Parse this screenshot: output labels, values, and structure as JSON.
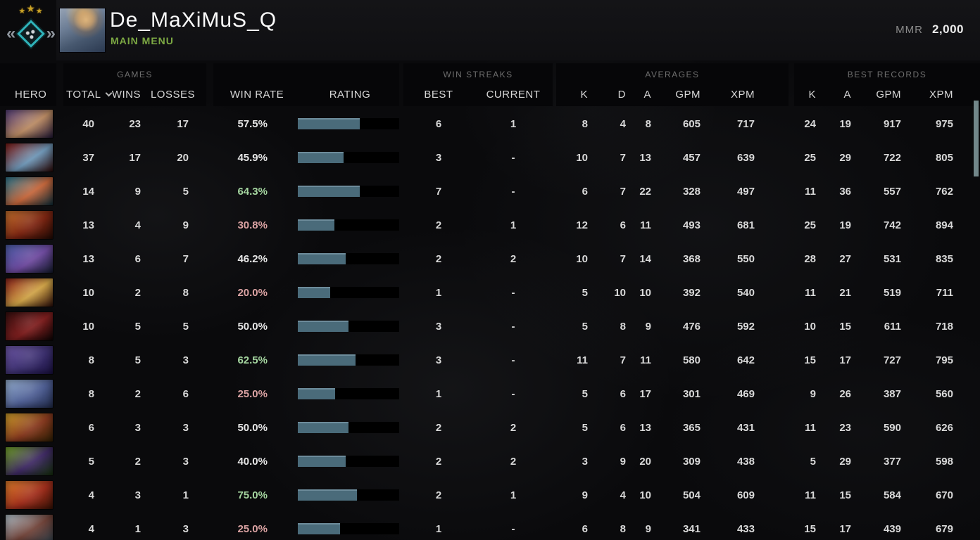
{
  "colors": {
    "accent_green": "#7ca843",
    "win_rate_high": "#a5d6a0",
    "win_rate_low": "#dba3a3",
    "win_rate_mid": "#e6e6e6",
    "bar_fill": "#4a6b7a",
    "bar_track": "#000000",
    "medal_teal": "#2fb3ba",
    "star_gold": "#c9a227",
    "scrollbar_thumb": "#72878a"
  },
  "icons": {
    "rank_star": "★",
    "medal_wing_left": "«",
    "medal_wing_right": "»",
    "sort_chevron": "chevron-down"
  },
  "top_bar": {
    "player_name": "De_MaXiMuS_Q",
    "nav_label": "MAIN MENU",
    "mmr_label": "MMR",
    "mmr_value": "2,000"
  },
  "table": {
    "header": {
      "hero": "HERO",
      "games_group": "GAMES",
      "total": "TOTAL",
      "wins": "WINS",
      "losses": "LOSSES",
      "win_rate": "WIN RATE",
      "rating": "RATING",
      "streaks_group": "WIN STREAKS",
      "streak_best": "BEST",
      "streak_current": "CURRENT",
      "averages_group": "AVERAGES",
      "avg_k": "K",
      "avg_d": "D",
      "avg_a": "A",
      "avg_gpm": "GPM",
      "avg_xpm": "XPM",
      "records_group": "BEST RECORDS",
      "rec_k": "K",
      "rec_a": "A",
      "rec_gpm": "GPM",
      "rec_xpm": "XPM"
    },
    "rows": [
      {
        "hero_hint": "anti-mage",
        "portrait_colors": [
          "#55407c",
          "#b98a63",
          "#241a38"
        ],
        "total": "40",
        "wins": "23",
        "losses": "17",
        "win_rate": "57.5%",
        "win_rate_tone": "mid",
        "rating_pct": 61,
        "streak_best": "6",
        "streak_current": "1",
        "avg_k": "8",
        "avg_d": "4",
        "avg_a": "8",
        "avg_gpm": "605",
        "avg_xpm": "717",
        "rec_k": "24",
        "rec_a": "19",
        "rec_gpm": "917",
        "rec_xpm": "975"
      },
      {
        "hero_hint": "queen-of-pain",
        "portrait_colors": [
          "#7e1b15",
          "#6d95b5",
          "#2c0a08"
        ],
        "total": "37",
        "wins": "17",
        "losses": "20",
        "win_rate": "45.9%",
        "win_rate_tone": "mid",
        "rating_pct": 45,
        "streak_best": "3",
        "streak_current": "-",
        "avg_k": "10",
        "avg_d": "7",
        "avg_a": "13",
        "avg_gpm": "457",
        "avg_xpm": "639",
        "rec_k": "25",
        "rec_a": "29",
        "rec_gpm": "722",
        "rec_xpm": "805"
      },
      {
        "hero_hint": "huskar",
        "portrait_colors": [
          "#2f7d96",
          "#c4663b",
          "#0e2e3a"
        ],
        "total": "14",
        "wins": "9",
        "losses": "5",
        "win_rate": "64.3%",
        "win_rate_tone": "high",
        "rating_pct": 61,
        "streak_best": "7",
        "streak_current": "-",
        "avg_k": "6",
        "avg_d": "7",
        "avg_a": "22",
        "avg_gpm": "328",
        "avg_xpm": "497",
        "rec_k": "11",
        "rec_a": "36",
        "rec_gpm": "557",
        "rec_xpm": "762"
      },
      {
        "hero_hint": "chaos-knight",
        "portrait_colors": [
          "#c8732f",
          "#7c2512",
          "#200a04"
        ],
        "total": "13",
        "wins": "4",
        "losses": "9",
        "win_rate": "30.8%",
        "win_rate_tone": "low",
        "rating_pct": 36,
        "streak_best": "2",
        "streak_current": "1",
        "avg_k": "12",
        "avg_d": "6",
        "avg_a": "11",
        "avg_gpm": "493",
        "avg_xpm": "681",
        "rec_k": "25",
        "rec_a": "19",
        "rec_gpm": "742",
        "rec_xpm": "894"
      },
      {
        "hero_hint": "riki",
        "portrait_colors": [
          "#4d5fa8",
          "#6e4a9e",
          "#151c2e"
        ],
        "total": "13",
        "wins": "6",
        "losses": "7",
        "win_rate": "46.2%",
        "win_rate_tone": "mid",
        "rating_pct": 47,
        "streak_best": "2",
        "streak_current": "2",
        "avg_k": "10",
        "avg_d": "7",
        "avg_a": "14",
        "avg_gpm": "368",
        "avg_xpm": "550",
        "rec_k": "28",
        "rec_a": "27",
        "rec_gpm": "531",
        "rec_xpm": "835"
      },
      {
        "hero_hint": "legion-commander",
        "portrait_colors": [
          "#8e231c",
          "#cfa348",
          "#2e0f0a"
        ],
        "total": "10",
        "wins": "2",
        "losses": "8",
        "win_rate": "20.0%",
        "win_rate_tone": "low",
        "rating_pct": 32,
        "streak_best": "1",
        "streak_current": "-",
        "avg_k": "5",
        "avg_d": "10",
        "avg_a": "10",
        "avg_gpm": "392",
        "avg_xpm": "540",
        "rec_k": "11",
        "rec_a": "21",
        "rec_gpm": "519",
        "rec_xpm": "711"
      },
      {
        "hero_hint": "broodmother",
        "portrait_colors": [
          "#391010",
          "#7e1f1f",
          "#0d0404"
        ],
        "total": "10",
        "wins": "5",
        "losses": "5",
        "win_rate": "50.0%",
        "win_rate_tone": "mid",
        "rating_pct": 50,
        "streak_best": "3",
        "streak_current": "-",
        "avg_k": "5",
        "avg_d": "8",
        "avg_a": "9",
        "avg_gpm": "476",
        "avg_xpm": "592",
        "rec_k": "10",
        "rec_a": "15",
        "rec_gpm": "611",
        "rec_xpm": "718"
      },
      {
        "hero_hint": "faceless-void",
        "portrait_colors": [
          "#6f58a8",
          "#3d3170",
          "#191040"
        ],
        "total": "8",
        "wins": "5",
        "losses": "3",
        "win_rate": "62.5%",
        "win_rate_tone": "high",
        "rating_pct": 57,
        "streak_best": "3",
        "streak_current": "-",
        "avg_k": "11",
        "avg_d": "7",
        "avg_a": "11",
        "avg_gpm": "580",
        "avg_xpm": "642",
        "rec_k": "15",
        "rec_a": "17",
        "rec_gpm": "727",
        "rec_xpm": "795"
      },
      {
        "hero_hint": "mirana",
        "portrait_colors": [
          "#9ab4d4",
          "#4f5f94",
          "#222c4c"
        ],
        "total": "8",
        "wins": "2",
        "losses": "6",
        "win_rate": "25.0%",
        "win_rate_tone": "low",
        "rating_pct": 37,
        "streak_best": "1",
        "streak_current": "-",
        "avg_k": "5",
        "avg_d": "6",
        "avg_a": "17",
        "avg_gpm": "301",
        "avg_xpm": "469",
        "rec_k": "9",
        "rec_a": "26",
        "rec_gpm": "387",
        "rec_xpm": "560"
      },
      {
        "hero_hint": "bounty-hunter",
        "portrait_colors": [
          "#cf9f2c",
          "#86391f",
          "#302004"
        ],
        "total": "6",
        "wins": "3",
        "losses": "3",
        "win_rate": "50.0%",
        "win_rate_tone": "mid",
        "rating_pct": 50,
        "streak_best": "2",
        "streak_current": "2",
        "avg_k": "5",
        "avg_d": "6",
        "avg_a": "13",
        "avg_gpm": "365",
        "avg_xpm": "431",
        "rec_k": "11",
        "rec_a": "23",
        "rec_gpm": "590",
        "rec_xpm": "626"
      },
      {
        "hero_hint": "rubick",
        "portrait_colors": [
          "#76a82c",
          "#3f2a64",
          "#16300c"
        ],
        "total": "5",
        "wins": "2",
        "losses": "3",
        "win_rate": "40.0%",
        "win_rate_tone": "mid",
        "rating_pct": 47,
        "streak_best": "2",
        "streak_current": "2",
        "avg_k": "3",
        "avg_d": "9",
        "avg_a": "20",
        "avg_gpm": "309",
        "avg_xpm": "438",
        "rec_k": "5",
        "rec_a": "29",
        "rec_gpm": "377",
        "rec_xpm": "598"
      },
      {
        "hero_hint": "lina",
        "portrait_colors": [
          "#e07f2c",
          "#a02e1c",
          "#381205"
        ],
        "total": "4",
        "wins": "3",
        "losses": "1",
        "win_rate": "75.0%",
        "win_rate_tone": "high",
        "rating_pct": 58,
        "streak_best": "2",
        "streak_current": "1",
        "avg_k": "9",
        "avg_d": "4",
        "avg_a": "10",
        "avg_gpm": "504",
        "avg_xpm": "609",
        "rec_k": "11",
        "rec_a": "15",
        "rec_gpm": "584",
        "rec_xpm": "670"
      },
      {
        "hero_hint": "tusk",
        "portrait_colors": [
          "#b6c6d0",
          "#6f4238",
          "#31414c"
        ],
        "total": "4",
        "wins": "1",
        "losses": "3",
        "win_rate": "25.0%",
        "win_rate_tone": "low",
        "rating_pct": 42,
        "streak_best": "1",
        "streak_current": "-",
        "avg_k": "6",
        "avg_d": "8",
        "avg_a": "9",
        "avg_gpm": "341",
        "avg_xpm": "433",
        "rec_k": "15",
        "rec_a": "17",
        "rec_gpm": "439",
        "rec_xpm": "679"
      }
    ]
  }
}
